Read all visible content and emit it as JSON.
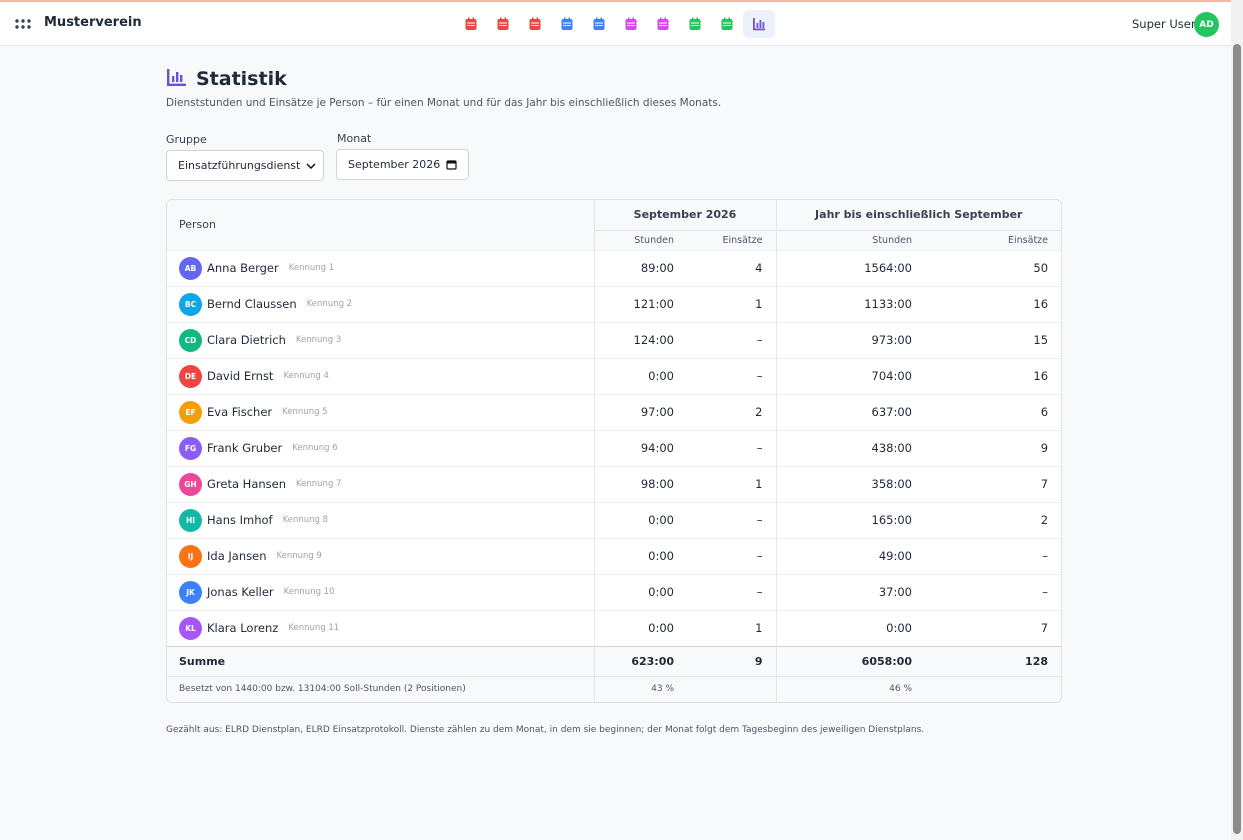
{
  "header": {
    "brand": "Musterverein",
    "user": "Super User",
    "avatar": "AD"
  },
  "page": {
    "title": "Statistik",
    "subtitle": "Dienststunden und Einsätze je Person – für einen Monat und für das Jahr bis einschließlich dieses Monats."
  },
  "filters": {
    "group_label": "Gruppe",
    "group_value": "Einsatzführungsdienst",
    "month_label": "Monat",
    "month_value": "September 2026"
  },
  "table": {
    "person_header": "Person",
    "month_header": "September 2026",
    "year_header": "Jahr bis einschließlich September",
    "sub_headers": [
      "Stunden",
      "Einsätze",
      "Stunden",
      "Einsätze"
    ],
    "rows": [
      [
        "AB",
        "Anna Berger",
        "Kennung 1",
        "89:00",
        "4",
        "1564:00",
        "50"
      ],
      [
        "BC",
        "Bernd Claussen",
        "Kennung 2",
        "121:00",
        "1",
        "1133:00",
        "16"
      ],
      [
        "CD",
        "Clara Dietrich",
        "Kennung 3",
        "124:00",
        "–",
        "973:00",
        "15"
      ],
      [
        "DE",
        "David Ernst",
        "Kennung 4",
        "0:00",
        "–",
        "704:00",
        "16"
      ],
      [
        "EF",
        "Eva Fischer",
        "Kennung 5",
        "97:00",
        "2",
        "637:00",
        "6"
      ],
      [
        "FG",
        "Frank Gruber",
        "Kennung 6",
        "94:00",
        "–",
        "438:00",
        "9"
      ],
      [
        "GH",
        "Greta Hansen",
        "Kennung 7",
        "98:00",
        "1",
        "358:00",
        "7"
      ],
      [
        "HI",
        "Hans Imhof",
        "Kennung 8",
        "0:00",
        "–",
        "165:00",
        "2"
      ],
      [
        "IJ",
        "Ida Jansen",
        "Kennung 9",
        "0:00",
        "–",
        "49:00",
        "–"
      ],
      [
        "JK",
        "Jonas Keller",
        "Kennung 10",
        "0:00",
        "–",
        "37:00",
        "–"
      ],
      [
        "KL",
        "Klara Lorenz",
        "Kennung 11",
        "0:00",
        "1",
        "0:00",
        "7"
      ]
    ],
    "sum": [
      "Summe",
      "623:00",
      "9",
      "6058:00",
      "128"
    ],
    "occupancy": [
      "Besetzt von 1440:00 bzw. 13104:00 Soll-Stunden (2 Positionen)",
      "43 %",
      "46 %"
    ]
  },
  "footer": {
    "note": "Gezählt aus: ELRD Dienstplan, ELRD Einsatzprotokoll. Dienste zählen zu dem Monat, in dem sie beginnen; der Monat folgt dem Tagesbeginn des jeweiligen Dienstplans."
  }
}
